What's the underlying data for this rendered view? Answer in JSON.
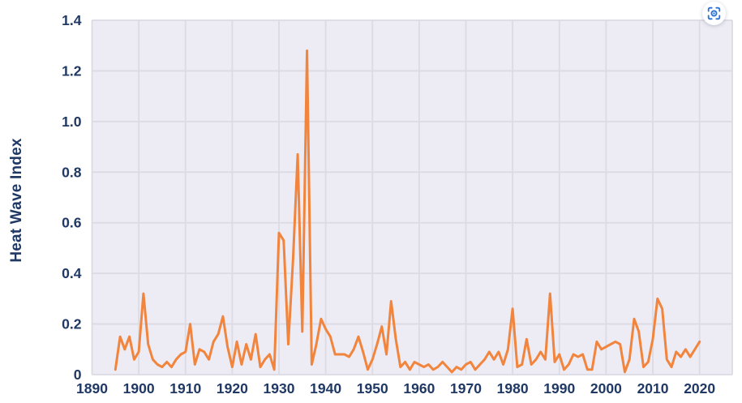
{
  "page": {
    "background": "#ffffff"
  },
  "toolbar": {
    "focus_icon": "focus-frame-icon",
    "focus_icon_color": "#2b71d8"
  },
  "chart_data": {
    "type": "line",
    "title": "",
    "xlabel": "",
    "ylabel": "Heat Wave Index",
    "xlim": [
      1890,
      2027
    ],
    "ylim": [
      0,
      1.4
    ],
    "grid": true,
    "legend": "none",
    "x_tick_labels": [
      "1890",
      "1900",
      "1910",
      "1920",
      "1930",
      "1940",
      "1950",
      "1960",
      "1970",
      "1980",
      "1990",
      "2000",
      "2010",
      "2020"
    ],
    "y_tick_labels": [
      "0",
      "0.2",
      "0.4",
      "0.6",
      "0.8",
      "1.0",
      "1.2",
      "1.4"
    ],
    "colors": {
      "line": "#f1853d",
      "plot_background": "#edebf3",
      "grid_line": "#dcdae2",
      "axis_label": "#1f3864"
    },
    "series": [
      {
        "name": "Heat Wave Index",
        "points": [
          [
            1895,
            0.02
          ],
          [
            1896,
            0.15
          ],
          [
            1897,
            0.1
          ],
          [
            1898,
            0.15
          ],
          [
            1899,
            0.06
          ],
          [
            1900,
            0.09
          ],
          [
            1901,
            0.32
          ],
          [
            1902,
            0.12
          ],
          [
            1903,
            0.06
          ],
          [
            1904,
            0.04
          ],
          [
            1905,
            0.03
          ],
          [
            1906,
            0.05
          ],
          [
            1907,
            0.03
          ],
          [
            1908,
            0.06
          ],
          [
            1909,
            0.08
          ],
          [
            1910,
            0.09
          ],
          [
            1911,
            0.2
          ],
          [
            1912,
            0.04
          ],
          [
            1913,
            0.1
          ],
          [
            1914,
            0.09
          ],
          [
            1915,
            0.06
          ],
          [
            1916,
            0.13
          ],
          [
            1917,
            0.16
          ],
          [
            1918,
            0.23
          ],
          [
            1919,
            0.11
          ],
          [
            1920,
            0.03
          ],
          [
            1921,
            0.13
          ],
          [
            1922,
            0.04
          ],
          [
            1923,
            0.12
          ],
          [
            1924,
            0.06
          ],
          [
            1925,
            0.16
          ],
          [
            1926,
            0.03
          ],
          [
            1927,
            0.06
          ],
          [
            1928,
            0.08
          ],
          [
            1929,
            0.02
          ],
          [
            1930,
            0.56
          ],
          [
            1931,
            0.53
          ],
          [
            1932,
            0.12
          ],
          [
            1933,
            0.45
          ],
          [
            1934,
            0.87
          ],
          [
            1935,
            0.17
          ],
          [
            1936,
            1.28
          ],
          [
            1937,
            0.04
          ],
          [
            1938,
            0.12
          ],
          [
            1939,
            0.22
          ],
          [
            1940,
            0.18
          ],
          [
            1941,
            0.15
          ],
          [
            1942,
            0.08
          ],
          [
            1943,
            0.08
          ],
          [
            1944,
            0.08
          ],
          [
            1945,
            0.07
          ],
          [
            1946,
            0.1
          ],
          [
            1947,
            0.15
          ],
          [
            1948,
            0.09
          ],
          [
            1949,
            0.02
          ],
          [
            1950,
            0.06
          ],
          [
            1951,
            0.12
          ],
          [
            1952,
            0.19
          ],
          [
            1953,
            0.08
          ],
          [
            1954,
            0.29
          ],
          [
            1955,
            0.14
          ],
          [
            1956,
            0.03
          ],
          [
            1957,
            0.05
          ],
          [
            1958,
            0.02
          ],
          [
            1959,
            0.05
          ],
          [
            1960,
            0.04
          ],
          [
            1961,
            0.03
          ],
          [
            1962,
            0.04
          ],
          [
            1963,
            0.02
          ],
          [
            1964,
            0.03
          ],
          [
            1965,
            0.05
          ],
          [
            1966,
            0.03
          ],
          [
            1967,
            0.01
          ],
          [
            1968,
            0.03
          ],
          [
            1969,
            0.02
          ],
          [
            1970,
            0.04
          ],
          [
            1971,
            0.05
          ],
          [
            1972,
            0.02
          ],
          [
            1973,
            0.04
          ],
          [
            1974,
            0.06
          ],
          [
            1975,
            0.09
          ],
          [
            1976,
            0.06
          ],
          [
            1977,
            0.09
          ],
          [
            1978,
            0.04
          ],
          [
            1979,
            0.1
          ],
          [
            1980,
            0.26
          ],
          [
            1981,
            0.03
          ],
          [
            1982,
            0.04
          ],
          [
            1983,
            0.14
          ],
          [
            1984,
            0.04
          ],
          [
            1985,
            0.06
          ],
          [
            1986,
            0.09
          ],
          [
            1987,
            0.06
          ],
          [
            1988,
            0.32
          ],
          [
            1989,
            0.05
          ],
          [
            1990,
            0.08
          ],
          [
            1991,
            0.02
          ],
          [
            1992,
            0.04
          ],
          [
            1993,
            0.08
          ],
          [
            1994,
            0.07
          ],
          [
            1995,
            0.08
          ],
          [
            1996,
            0.02
          ],
          [
            1997,
            0.02
          ],
          [
            1998,
            0.13
          ],
          [
            1999,
            0.1
          ],
          [
            2000,
            0.11
          ],
          [
            2001,
            0.12
          ],
          [
            2002,
            0.13
          ],
          [
            2003,
            0.12
          ],
          [
            2004,
            0.01
          ],
          [
            2005,
            0.06
          ],
          [
            2006,
            0.22
          ],
          [
            2007,
            0.17
          ],
          [
            2008,
            0.03
          ],
          [
            2009,
            0.05
          ],
          [
            2010,
            0.14
          ],
          [
            2011,
            0.3
          ],
          [
            2012,
            0.26
          ],
          [
            2013,
            0.06
          ],
          [
            2014,
            0.03
          ],
          [
            2015,
            0.09
          ],
          [
            2016,
            0.07
          ],
          [
            2017,
            0.1
          ],
          [
            2018,
            0.07
          ],
          [
            2019,
            0.1
          ],
          [
            2020,
            0.13
          ]
        ]
      }
    ]
  }
}
